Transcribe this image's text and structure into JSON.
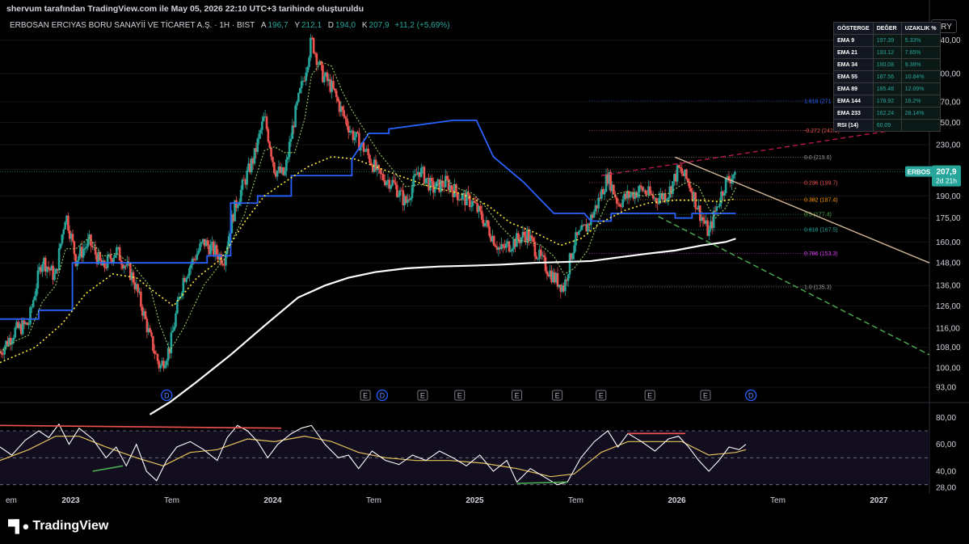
{
  "caption": "shervum tarafından TradingView.com ile May 05, 2026 22:10 UTC+3 tarihinde oluşturuldu",
  "symbol": {
    "name": "ERBOSAN ERCIYAS BORU SANAYİİ VE TİCARET A.Ş. · 1H · BIST",
    "o_label": "A",
    "o": "196,7",
    "h_label": "Y",
    "h": "212,1",
    "l_label": "D",
    "l": "194,0",
    "c_label": "K",
    "c": "207,9",
    "change": "+11,2 (+5,69%)"
  },
  "currency": "TRY",
  "price_tag": {
    "ticker": "ERBOS",
    "price": "207,9",
    "countdown": "2d 21h"
  },
  "indicator_table": {
    "headers": [
      "GÖSTERGE",
      "DEĞER",
      "UZAKLIK %"
    ],
    "rows": [
      {
        "name": "EMA 9",
        "value": "197.39",
        "dist": "5.33%"
      },
      {
        "name": "EMA 21",
        "value": "193.12",
        "dist": "7.65%"
      },
      {
        "name": "EMA 34",
        "value": "190.08",
        "dist": "9.38%"
      },
      {
        "name": "EMA 55",
        "value": "187.56",
        "dist": "10.84%"
      },
      {
        "name": "EMA 89",
        "value": "185.48",
        "dist": "12.09%"
      },
      {
        "name": "EMA 144",
        "value": "178.92",
        "dist": "16.2%"
      },
      {
        "name": "EMA 233",
        "value": "162.24",
        "dist": "28.14%"
      },
      {
        "name": "RSI (14)",
        "value": "60.09",
        "dist": ""
      }
    ]
  },
  "footer_brand": "TradingView",
  "colors": {
    "up": "#26a69a",
    "down": "#ef5350",
    "supertrend": "#2962ff",
    "ema_long": "#ffffff",
    "ema_mid": "#ffeb3b",
    "ema_short": "#9ccc65",
    "rsi": "#ffffff",
    "rsi_ma": "#e6c35c",
    "res_trend": "#d4b896",
    "sup_trend": "#4caf50"
  },
  "chart_data": {
    "type": "candlestick",
    "scale": "log",
    "ylim": [
      90,
      350
    ],
    "y_ticks": [
      "340,00",
      "300,00",
      "270,00",
      "250,00",
      "230,00",
      "210,00",
      "190,00",
      "175,00",
      "160,00",
      "148,00",
      "136,00",
      "126,00",
      "116,00",
      "108,00",
      "100,00",
      "93,00"
    ],
    "y_tick_values": [
      340,
      300,
      270,
      250,
      230,
      210,
      190,
      175,
      160,
      148,
      136,
      126,
      116,
      108,
      100,
      93
    ],
    "x_ticks": [
      "em",
      "2023",
      "Tem",
      "2024",
      "Tem",
      "2025",
      "Tem",
      "2026",
      "Tem",
      "2027"
    ],
    "x_tick_months": [
      0.5,
      4.5,
      10.5,
      16.5,
      22.5,
      28.5,
      34.5,
      40.5,
      46.5,
      52.5
    ],
    "x_month_range": [
      0.3,
      55.5
    ],
    "fib_levels": [
      {
        "label": "1.618 (271",
        "price": 271,
        "color": "#2962ff"
      },
      {
        "label": "-0.272 (242.5)",
        "price": 242.5,
        "color": "#ef5350"
      },
      {
        "label": "0.0 (219.6)",
        "price": 219.6,
        "color": "#9e9e9e"
      },
      {
        "label": "0.236 (199.7)",
        "price": 199.7,
        "color": "#ef5350"
      },
      {
        "label": "0.382 (187.4)",
        "price": 187.4,
        "color": "#ff9800"
      },
      {
        "label": "0.5 (177.4)",
        "price": 177.4,
        "color": "#4caf50"
      },
      {
        "label": "0.618 (167.5)",
        "price": 167.5,
        "color": "#26a69a"
      },
      {
        "label": "0.786 (153.3)",
        "price": 153.3,
        "color": "#e040fb"
      },
      {
        "label": "1.0 (135.3)",
        "price": 135.3,
        "color": "#9e9e9e"
      }
    ],
    "price_path": [
      [
        0.3,
        106
      ],
      [
        1.2,
        115
      ],
      [
        2.0,
        118
      ],
      [
        2.8,
        150
      ],
      [
        3.6,
        140
      ],
      [
        4.2,
        178
      ],
      [
        4.8,
        150
      ],
      [
        5.6,
        160
      ],
      [
        6.4,
        145
      ],
      [
        7.2,
        155
      ],
      [
        8.2,
        140
      ],
      [
        9.2,
        112
      ],
      [
        9.8,
        100
      ],
      [
        10.4,
        108
      ],
      [
        11.2,
        140
      ],
      [
        12.4,
        160
      ],
      [
        13.6,
        150
      ],
      [
        14.2,
        180
      ],
      [
        14.8,
        200
      ],
      [
        15.4,
        220
      ],
      [
        16.0,
        255
      ],
      [
        16.6,
        210
      ],
      [
        17.2,
        205
      ],
      [
        17.8,
        255
      ],
      [
        18.4,
        300
      ],
      [
        18.8,
        340
      ],
      [
        19.4,
        300
      ],
      [
        20.0,
        285
      ],
      [
        20.6,
        260
      ],
      [
        21.2,
        240
      ],
      [
        22.0,
        225
      ],
      [
        22.8,
        205
      ],
      [
        23.6,
        200
      ],
      [
        24.4,
        185
      ],
      [
        25.2,
        210
      ],
      [
        26.0,
        195
      ],
      [
        26.8,
        200
      ],
      [
        27.6,
        190
      ],
      [
        28.4,
        185
      ],
      [
        29.2,
        170
      ],
      [
        30.0,
        155
      ],
      [
        30.8,
        160
      ],
      [
        31.6,
        165
      ],
      [
        32.4,
        150
      ],
      [
        33.2,
        140
      ],
      [
        33.8,
        135
      ],
      [
        34.4,
        160
      ],
      [
        35.2,
        170
      ],
      [
        35.8,
        185
      ],
      [
        36.4,
        205
      ],
      [
        37.0,
        185
      ],
      [
        37.6,
        190
      ],
      [
        38.4,
        195
      ],
      [
        39.2,
        188
      ],
      [
        40.0,
        192
      ],
      [
        40.6,
        210
      ],
      [
        41.2,
        200
      ],
      [
        41.8,
        180
      ],
      [
        42.4,
        165
      ],
      [
        42.8,
        180
      ],
      [
        43.4,
        200
      ],
      [
        44.0,
        207.9
      ]
    ],
    "ema_long": [
      [
        9.2,
        84
      ],
      [
        10.4,
        88
      ],
      [
        12.0,
        95
      ],
      [
        14.0,
        105
      ],
      [
        16.0,
        117
      ],
      [
        18.0,
        130
      ],
      [
        19.6,
        136
      ],
      [
        21.0,
        140
      ],
      [
        22.6,
        143
      ],
      [
        24.4,
        145
      ],
      [
        26.4,
        146
      ],
      [
        28.4,
        146.5
      ],
      [
        30.0,
        147
      ],
      [
        32.0,
        148
      ],
      [
        33.8,
        148.5
      ],
      [
        35.4,
        149
      ],
      [
        37.0,
        151
      ],
      [
        38.6,
        153
      ],
      [
        40.4,
        155
      ],
      [
        42.0,
        158
      ],
      [
        43.4,
        160
      ],
      [
        44.0,
        162
      ]
    ],
    "ema_mid": [
      [
        0.3,
        102
      ],
      [
        2.4,
        108
      ],
      [
        4.0,
        118
      ],
      [
        5.4,
        132
      ],
      [
        7.0,
        142
      ],
      [
        8.4,
        140
      ],
      [
        9.6,
        132
      ],
      [
        10.6,
        126
      ],
      [
        12.0,
        140
      ],
      [
        13.4,
        150
      ],
      [
        14.8,
        172
      ],
      [
        16.0,
        190
      ],
      [
        17.2,
        200
      ],
      [
        18.6,
        212
      ],
      [
        20.0,
        220
      ],
      [
        21.4,
        218
      ],
      [
        22.6,
        212
      ],
      [
        24.0,
        205
      ],
      [
        26.0,
        196
      ],
      [
        27.6,
        192
      ],
      [
        29.2,
        184
      ],
      [
        30.6,
        172
      ],
      [
        32.0,
        166
      ],
      [
        33.6,
        158
      ],
      [
        34.8,
        162
      ],
      [
        36.0,
        172
      ],
      [
        37.4,
        180
      ],
      [
        38.8,
        185
      ],
      [
        40.4,
        187
      ],
      [
        41.8,
        187
      ],
      [
        43.0,
        186
      ],
      [
        44.0,
        188
      ]
    ],
    "supertrend": [
      [
        0.3,
        120
      ],
      [
        2.6,
        120
      ],
      [
        2.6,
        124
      ],
      [
        4.6,
        124
      ],
      [
        4.6,
        148
      ],
      [
        10.4,
        148
      ],
      [
        12.6,
        148
      ],
      [
        12.6,
        152
      ],
      [
        14.0,
        152
      ],
      [
        14.0,
        185
      ],
      [
        15.6,
        185
      ],
      [
        15.6,
        190
      ],
      [
        17.6,
        190
      ],
      [
        17.6,
        205
      ],
      [
        19.4,
        205
      ],
      [
        21.2,
        205
      ],
      [
        21.2,
        218
      ],
      [
        22.2,
        240
      ],
      [
        23.4,
        240
      ],
      [
        23.4,
        244
      ],
      [
        27.2,
        252
      ],
      [
        28.6,
        252
      ],
      [
        29.6,
        220
      ],
      [
        31.4,
        200
      ],
      [
        32.6,
        185
      ],
      [
        33.2,
        178
      ],
      [
        35.0,
        178
      ],
      [
        35.4,
        173
      ],
      [
        36.6,
        173
      ],
      [
        36.6,
        178
      ],
      [
        40.4,
        178
      ],
      [
        40.4,
        175
      ],
      [
        41.4,
        175
      ],
      [
        41.4,
        178
      ],
      [
        44.0,
        178
      ]
    ],
    "resistance_trend": {
      "start": [
        40.4,
        219.6
      ],
      "end": [
        55.5,
        148.0
      ]
    },
    "support_trend": {
      "start": [
        39.4,
        176.0
      ],
      "end": [
        55.5,
        105.0
      ]
    },
    "upper_dashed_trend": {
      "start": [
        36.0,
        205.0
      ],
      "end": [
        55.5,
        248.0
      ]
    },
    "event_markers": [
      {
        "m": 10.2,
        "kind": "D"
      },
      {
        "m": 22.0,
        "kind": "E"
      },
      {
        "m": 23.0,
        "kind": "D"
      },
      {
        "m": 25.4,
        "kind": "E"
      },
      {
        "m": 27.6,
        "kind": "E"
      },
      {
        "m": 31.0,
        "kind": "E"
      },
      {
        "m": 33.4,
        "kind": "E"
      },
      {
        "m": 36.0,
        "kind": "E"
      },
      {
        "m": 38.9,
        "kind": "E"
      },
      {
        "m": 42.2,
        "kind": "E"
      },
      {
        "m": 44.9,
        "kind": "D"
      }
    ],
    "rsi": {
      "ylim": [
        25,
        85
      ],
      "y_ticks": [
        "80,00",
        "60,00",
        "40,00",
        "28,00"
      ],
      "y_tick_values": [
        80,
        60,
        40,
        28
      ],
      "bands": [
        70,
        50,
        30
      ],
      "rsi_path": [
        [
          0.3,
          58
        ],
        [
          1.0,
          52
        ],
        [
          1.8,
          63
        ],
        [
          2.6,
          70
        ],
        [
          3.2,
          65
        ],
        [
          3.8,
          75
        ],
        [
          4.4,
          60
        ],
        [
          5.0,
          72
        ],
        [
          5.8,
          64
        ],
        [
          6.6,
          50
        ],
        [
          7.2,
          58
        ],
        [
          7.8,
          44
        ],
        [
          8.4,
          60
        ],
        [
          9.0,
          40
        ],
        [
          9.6,
          33
        ],
        [
          10.2,
          48
        ],
        [
          10.8,
          58
        ],
        [
          11.6,
          62
        ],
        [
          12.4,
          56
        ],
        [
          13.2,
          48
        ],
        [
          13.8,
          65
        ],
        [
          14.4,
          74
        ],
        [
          15.0,
          70
        ],
        [
          15.6,
          62
        ],
        [
          16.2,
          50
        ],
        [
          16.8,
          60
        ],
        [
          17.6,
          68
        ],
        [
          18.2,
          72
        ],
        [
          18.8,
          74
        ],
        [
          19.6,
          60
        ],
        [
          20.4,
          50
        ],
        [
          21.0,
          52
        ],
        [
          21.6,
          42
        ],
        [
          22.4,
          55
        ],
        [
          23.2,
          48
        ],
        [
          24.0,
          45
        ],
        [
          24.8,
          52
        ],
        [
          25.6,
          48
        ],
        [
          26.4,
          55
        ],
        [
          27.2,
          50
        ],
        [
          28.0,
          44
        ],
        [
          28.8,
          52
        ],
        [
          29.6,
          40
        ],
        [
          30.4,
          48
        ],
        [
          31.0,
          32
        ],
        [
          31.8,
          42
        ],
        [
          32.6,
          36
        ],
        [
          33.4,
          30
        ],
        [
          34.0,
          32
        ],
        [
          34.8,
          50
        ],
        [
          35.6,
          62
        ],
        [
          36.4,
          70
        ],
        [
          37.0,
          58
        ],
        [
          37.6,
          68
        ],
        [
          38.4,
          62
        ],
        [
          39.2,
          55
        ],
        [
          40.0,
          64
        ],
        [
          40.6,
          66
        ],
        [
          41.2,
          58
        ],
        [
          41.8,
          48
        ],
        [
          42.4,
          40
        ],
        [
          43.0,
          48
        ],
        [
          43.6,
          58
        ],
        [
          44.2,
          56
        ],
        [
          44.6,
          60
        ]
      ],
      "rsi_ma_path": [
        [
          0.3,
          48
        ],
        [
          2.0,
          56
        ],
        [
          3.6,
          66
        ],
        [
          5.0,
          66
        ],
        [
          6.6,
          58
        ],
        [
          8.4,
          50
        ],
        [
          10.0,
          44
        ],
        [
          11.6,
          54
        ],
        [
          13.2,
          56
        ],
        [
          15.0,
          64
        ],
        [
          16.6,
          62
        ],
        [
          18.4,
          66
        ],
        [
          20.0,
          62
        ],
        [
          21.6,
          54
        ],
        [
          23.2,
          50
        ],
        [
          25.0,
          48
        ],
        [
          27.0,
          48
        ],
        [
          29.0,
          46
        ],
        [
          31.0,
          42
        ],
        [
          33.0,
          36
        ],
        [
          34.4,
          38
        ],
        [
          36.0,
          54
        ],
        [
          37.6,
          62
        ],
        [
          39.2,
          62
        ],
        [
          40.8,
          62
        ],
        [
          42.4,
          52
        ],
        [
          44.0,
          54
        ],
        [
          44.6,
          56
        ]
      ],
      "div_lines": [
        {
          "from": [
            0.3,
            74
          ],
          "to": [
            17.0,
            72
          ],
          "color": "#ef5350"
        },
        {
          "from": [
            5.8,
            40
          ],
          "to": [
            7.6,
            44
          ],
          "color": "#4caf50"
        },
        {
          "from": [
            31.0,
            31
          ],
          "to": [
            34.0,
            32
          ],
          "color": "#4caf50"
        },
        {
          "from": [
            37.6,
            68
          ],
          "to": [
            41.0,
            68
          ],
          "color": "#ef5350"
        }
      ]
    }
  }
}
